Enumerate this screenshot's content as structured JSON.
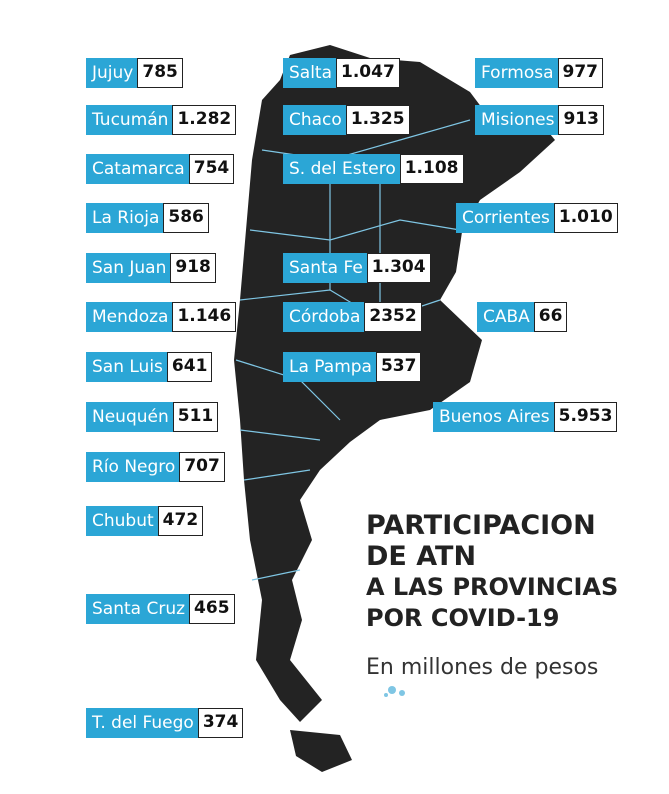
{
  "title": [
    "PARTICIPACION",
    "DE ATN",
    "A LAS PROVINCIAS",
    "POR COVID-19"
  ],
  "subtitle": "En millones de pesos",
  "provinces": [
    {
      "name": "Jujuy",
      "value": "785"
    },
    {
      "name": "Tucumán",
      "value": "1.282"
    },
    {
      "name": "Catamarca",
      "value": "754"
    },
    {
      "name": "La Rioja",
      "value": "586"
    },
    {
      "name": "San Juan",
      "value": "918"
    },
    {
      "name": "Mendoza",
      "value": "1.146"
    },
    {
      "name": "San Luis",
      "value": "641"
    },
    {
      "name": "Neuquén",
      "value": "511"
    },
    {
      "name": "Río Negro",
      "value": "707"
    },
    {
      "name": "Chubut",
      "value": "472"
    },
    {
      "name": "Santa Cruz",
      "value": "465"
    },
    {
      "name": "T. del Fuego",
      "value": "374"
    },
    {
      "name": "Salta",
      "value": "1.047"
    },
    {
      "name": "Chaco",
      "value": "1.325"
    },
    {
      "name": "S. del Estero",
      "value": "1.108"
    },
    {
      "name": "Santa Fe",
      "value": "1.304"
    },
    {
      "name": "Córdoba",
      "value": "2352"
    },
    {
      "name": "La Pampa",
      "value": "537"
    },
    {
      "name": "Formosa",
      "value": "977"
    },
    {
      "name": "Misiones",
      "value": "913"
    },
    {
      "name": "Corrientes",
      "value": "1.010"
    },
    {
      "name": "CABA",
      "value": "66"
    },
    {
      "name": "Buenos Aires",
      "value": "5.953"
    }
  ]
}
